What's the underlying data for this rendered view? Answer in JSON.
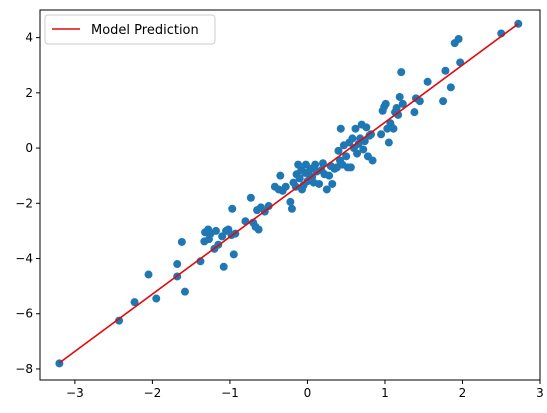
{
  "chart_data": {
    "type": "scatter",
    "title": "",
    "xlabel": "",
    "ylabel": "",
    "xlim": [
      -3.45,
      3.0
    ],
    "ylim": [
      -8.4,
      5.0
    ],
    "xticks": [
      -3,
      -2,
      -1,
      0,
      1,
      2,
      3
    ],
    "yticks": [
      -8,
      -6,
      -4,
      -2,
      0,
      2,
      4
    ],
    "grid": false,
    "legend": {
      "position": "top-left",
      "entries": [
        {
          "label": "Model Prediction",
          "color": "#e4080a",
          "marker": "line"
        }
      ]
    },
    "series": [
      {
        "kind": "scatter",
        "color": "#1f77b4",
        "points": [
          [
            -3.2,
            -7.8
          ],
          [
            -2.43,
            -6.25
          ],
          [
            -2.23,
            -5.58
          ],
          [
            -2.05,
            -4.58
          ],
          [
            -1.95,
            -5.45
          ],
          [
            -1.68,
            -4.2
          ],
          [
            -1.68,
            -4.65
          ],
          [
            -1.62,
            -3.4
          ],
          [
            -1.58,
            -5.2
          ],
          [
            -1.38,
            -4.1
          ],
          [
            -1.33,
            -3.38
          ],
          [
            -1.32,
            -3.05
          ],
          [
            -1.28,
            -2.95
          ],
          [
            -1.27,
            -3.3
          ],
          [
            -1.25,
            -3.1
          ],
          [
            -1.2,
            -3.65
          ],
          [
            -1.18,
            -3.0
          ],
          [
            -1.15,
            -3.5
          ],
          [
            -1.1,
            -3.2
          ],
          [
            -1.08,
            -4.3
          ],
          [
            -1.05,
            -3.0
          ],
          [
            -1.02,
            -2.95
          ],
          [
            -0.98,
            -3.15
          ],
          [
            -0.97,
            -2.2
          ],
          [
            -0.95,
            -3.85
          ],
          [
            -0.93,
            -3.1
          ],
          [
            -0.8,
            -2.65
          ],
          [
            -0.73,
            -1.8
          ],
          [
            -0.7,
            -2.7
          ],
          [
            -0.67,
            -2.85
          ],
          [
            -0.65,
            -2.25
          ],
          [
            -0.63,
            -2.95
          ],
          [
            -0.6,
            -2.15
          ],
          [
            -0.55,
            -2.3
          ],
          [
            -0.5,
            -2.1
          ],
          [
            -0.42,
            -1.4
          ],
          [
            -0.37,
            -1.5
          ],
          [
            -0.35,
            -1.0
          ],
          [
            -0.32,
            -1.55
          ],
          [
            -0.28,
            -1.4
          ],
          [
            -0.22,
            -1.95
          ],
          [
            -0.2,
            -2.2
          ],
          [
            -0.18,
            -1.25
          ],
          [
            -0.15,
            -1.4
          ],
          [
            -0.14,
            -0.95
          ],
          [
            -0.12,
            -0.6
          ],
          [
            -0.1,
            -1.1
          ],
          [
            -0.08,
            -0.8
          ],
          [
            -0.07,
            -1.5
          ],
          [
            -0.05,
            -1.35
          ],
          [
            -0.03,
            -0.9
          ],
          [
            -0.02,
            -0.6
          ],
          [
            0.0,
            -1.2
          ],
          [
            0.02,
            -0.95
          ],
          [
            0.04,
            -0.75
          ],
          [
            0.06,
            -1.05
          ],
          [
            0.08,
            -1.25
          ],
          [
            0.1,
            -0.6
          ],
          [
            0.12,
            -0.85
          ],
          [
            0.15,
            -1.3
          ],
          [
            0.18,
            -0.8
          ],
          [
            0.2,
            -0.55
          ],
          [
            0.22,
            -0.95
          ],
          [
            0.25,
            -1.5
          ],
          [
            0.28,
            -1.0
          ],
          [
            0.3,
            -0.65
          ],
          [
            0.32,
            -1.3
          ],
          [
            0.35,
            -0.75
          ],
          [
            0.38,
            -0.7
          ],
          [
            0.4,
            -0.1
          ],
          [
            0.42,
            -0.45
          ],
          [
            0.43,
            0.7
          ],
          [
            0.45,
            -0.6
          ],
          [
            0.47,
            0.1
          ],
          [
            0.5,
            -0.3
          ],
          [
            0.52,
            -0.7
          ],
          [
            0.54,
            0.2
          ],
          [
            0.56,
            -0.7
          ],
          [
            0.58,
            0.35
          ],
          [
            0.6,
            0.0
          ],
          [
            0.62,
            0.7
          ],
          [
            0.64,
            -0.2
          ],
          [
            0.66,
            0.15
          ],
          [
            0.68,
            0.35
          ],
          [
            0.7,
            0.85
          ],
          [
            0.72,
            -0.05
          ],
          [
            0.74,
            0.25
          ],
          [
            0.76,
            0.75
          ],
          [
            0.78,
            -0.3
          ],
          [
            0.8,
            0.45
          ],
          [
            0.82,
            0.5
          ],
          [
            0.84,
            -0.45
          ],
          [
            0.95,
            0.5
          ],
          [
            0.97,
            1.35
          ],
          [
            0.99,
            1.5
          ],
          [
            1.01,
            1.6
          ],
          [
            1.03,
            0.7
          ],
          [
            1.05,
            0.2
          ],
          [
            1.07,
            0.9
          ],
          [
            1.09,
            0.75
          ],
          [
            1.11,
            0.7
          ],
          [
            1.13,
            1.3
          ],
          [
            1.15,
            1.45
          ],
          [
            1.17,
            1.2
          ],
          [
            1.19,
            1.85
          ],
          [
            1.21,
            2.75
          ],
          [
            1.23,
            1.6
          ],
          [
            1.38,
            1.3
          ],
          [
            1.4,
            1.8
          ],
          [
            1.45,
            1.7
          ],
          [
            1.55,
            2.4
          ],
          [
            1.75,
            1.7
          ],
          [
            1.78,
            2.8
          ],
          [
            1.85,
            2.2
          ],
          [
            1.9,
            3.8
          ],
          [
            1.95,
            3.95
          ],
          [
            1.97,
            3.1
          ],
          [
            2.5,
            4.15
          ],
          [
            2.72,
            4.5
          ]
        ]
      },
      {
        "name": "Model Prediction",
        "kind": "line",
        "color": "#e4080a",
        "x": [
          -3.2,
          2.72
        ],
        "y": [
          -7.78,
          4.5
        ]
      }
    ]
  }
}
